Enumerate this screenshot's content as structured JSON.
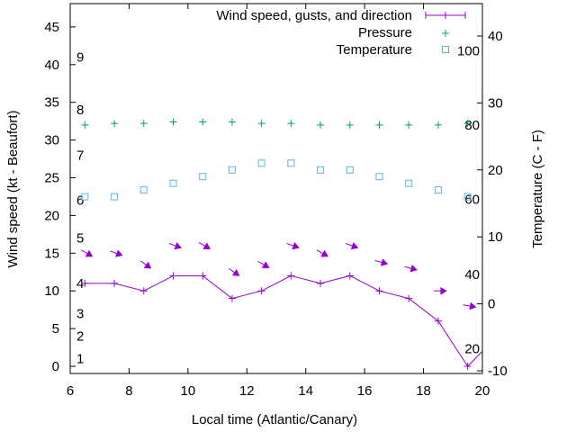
{
  "chart_data": {
    "type": "line",
    "xlabel": "Local time (Atlantic/Canary)",
    "ylabel": "Wind speed (kt - Beaufort)",
    "y2label": "Temperature (C - F)",
    "xlim": [
      6,
      20
    ],
    "ylim": [
      -1,
      47.5
    ],
    "y2lim": [
      -10,
      45
    ],
    "xticks": [
      6,
      8,
      10,
      12,
      14,
      16,
      18,
      20
    ],
    "yticks": [
      0,
      5,
      10,
      15,
      20,
      25,
      30,
      35,
      40,
      45
    ],
    "y2ticks": [
      -10,
      0,
      10,
      20,
      30,
      40
    ],
    "beaufort_labels": [
      {
        "label": "1",
        "kt": 1
      },
      {
        "label": "2",
        "kt": 4
      },
      {
        "label": "3",
        "kt": 7
      },
      {
        "label": "4",
        "kt": 11
      },
      {
        "label": "5",
        "kt": 17
      },
      {
        "label": "6",
        "kt": 22
      },
      {
        "label": "7",
        "kt": 28
      },
      {
        "label": "8",
        "kt": 34
      },
      {
        "label": "9",
        "kt": 41
      }
    ],
    "fahrenheit_labels": [
      {
        "label": "20",
        "c": -6.7
      },
      {
        "label": "40",
        "c": 4.4
      },
      {
        "label": "60",
        "c": 15.6
      },
      {
        "label": "80",
        "c": 26.7
      },
      {
        "label": "100",
        "c": 37.8
      }
    ],
    "legend": [
      "Wind speed, gusts, and direction",
      "Pressure",
      "Temperature"
    ],
    "legend_position": "top-right",
    "colors": {
      "wind": "#9400d3",
      "pressure": "#009e73",
      "temperature": "#56b4e9"
    },
    "x": [
      6.5,
      7.5,
      8.5,
      9.5,
      10.5,
      11.5,
      12.5,
      13.5,
      14.5,
      15.5,
      16.5,
      17.5,
      18.5,
      19.5
    ],
    "series": [
      {
        "name": "Wind speed",
        "axis": "y",
        "values": [
          11,
          11,
          10,
          12,
          12,
          9,
          10,
          12,
          11,
          12,
          10,
          9,
          6,
          0
        ],
        "extend_to": {
          "x": 20,
          "y": 2
        }
      },
      {
        "name": "Gusts",
        "axis": "y",
        "values": [
          15,
          15,
          13.5,
          16,
          16,
          12.5,
          13.5,
          16,
          15,
          16,
          13.8,
          13,
          10,
          8
        ],
        "direction_deg": [
          300,
          290,
          305,
          290,
          300,
          305,
          300,
          290,
          300,
          290,
          285,
          285,
          270,
          280
        ]
      },
      {
        "name": "Pressure",
        "axis": "y",
        "values": [
          32,
          32.2,
          32.2,
          32.4,
          32.4,
          32.4,
          32.2,
          32.2,
          32,
          32,
          32,
          32,
          32,
          32.2
        ]
      },
      {
        "name": "Temperature",
        "axis": "y2",
        "values": [
          16,
          16,
          17,
          18,
          19,
          20,
          21,
          21,
          20,
          20,
          19,
          18,
          17,
          16
        ]
      }
    ]
  }
}
